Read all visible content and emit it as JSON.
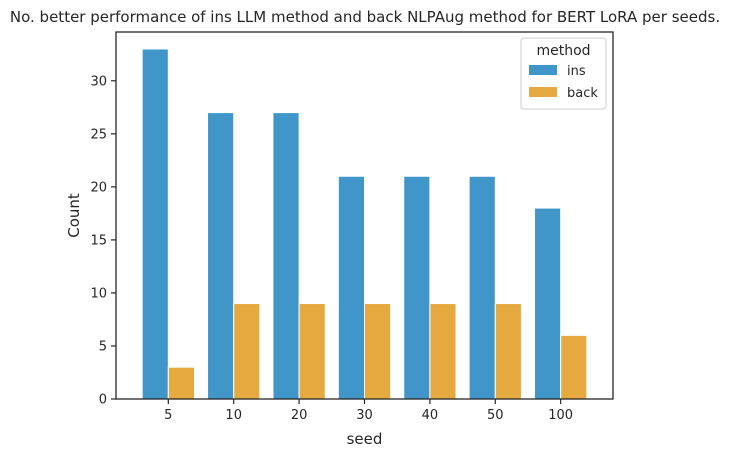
{
  "chart_data": {
    "type": "bar",
    "title": "No. better performance of ins LLM method and back NLPAug method for BERT LoRA per seeds.",
    "xlabel": "seed",
    "ylabel": "Count",
    "categories": [
      "5",
      "10",
      "20",
      "30",
      "40",
      "50",
      "100"
    ],
    "series": [
      {
        "name": "ins",
        "values": [
          33,
          27,
          27,
          21,
          21,
          21,
          18
        ],
        "color": "#4196c9"
      },
      {
        "name": "back",
        "values": [
          3,
          9,
          9,
          9,
          9,
          9,
          6
        ],
        "color": "#e5a940"
      }
    ],
    "ylim": [
      0,
      34.6
    ],
    "yticks": [
      0,
      5,
      10,
      15,
      20,
      25,
      30
    ],
    "grid": false,
    "legend": {
      "title": "method",
      "placement": "top-right"
    }
  }
}
